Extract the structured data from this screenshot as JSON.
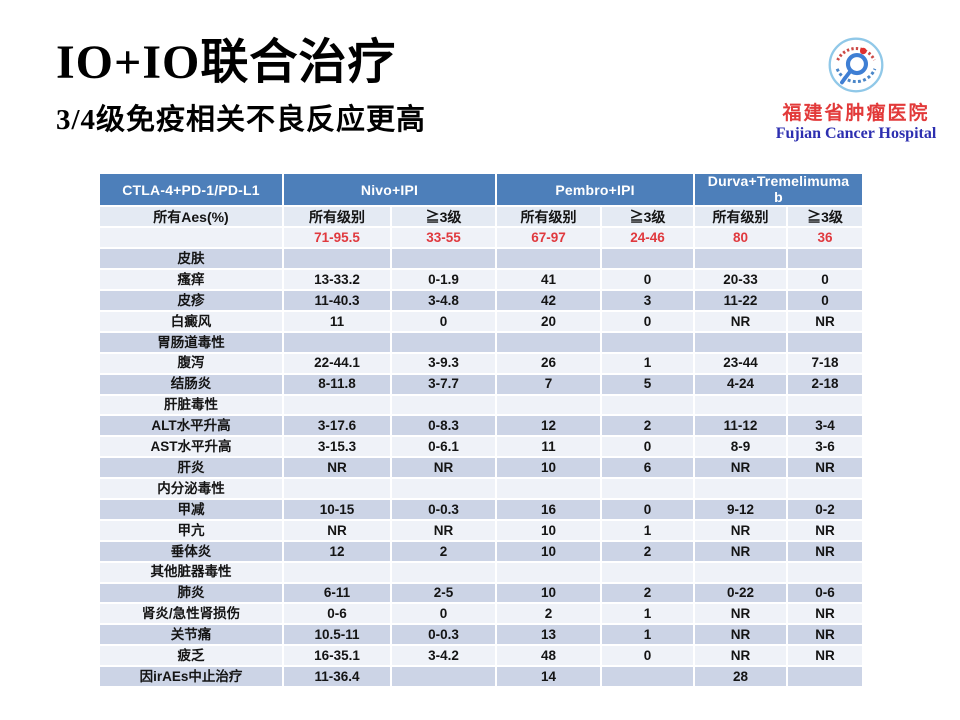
{
  "slide": {
    "title": "IO+IO联合治疗",
    "subtitle": "3/4级免疫相关不良反应更高"
  },
  "logo": {
    "hospital_cn": "福建省肿瘤医院",
    "hospital_en": "Fujian Cancer Hospital"
  },
  "colors": {
    "header_blue": "#4d7fba",
    "band_dark": "#ccd4e6",
    "band_light": "#eff2f8",
    "subheader_bg": "#e4eaf3",
    "red_text": "#e0393e",
    "hospital_cn_color": "#e23a3a",
    "hospital_en_color": "#2d2fb0"
  },
  "table": {
    "header": {
      "col1": "CTLA-4+PD-1/PD-L1",
      "groups": [
        "Nivo+IPI",
        "Pembro+IPI",
        "Durva+Tremelimumab"
      ]
    },
    "subheader": {
      "label": "所有Aes(%)",
      "cols": [
        "所有级别",
        "≧3级",
        "所有级别",
        "≧3级",
        "所有级别",
        "≧3级"
      ]
    },
    "summary": {
      "values": [
        "71-95.5",
        "33-55",
        "67-97",
        "24-46",
        "80",
        "36"
      ]
    },
    "rows": [
      {
        "label": "皮肤",
        "category": true,
        "values": [
          "",
          "",
          "",
          "",
          "",
          ""
        ]
      },
      {
        "label": "瘙痒",
        "category": false,
        "values": [
          "13-33.2",
          "0-1.9",
          "41",
          "0",
          "20-33",
          "0"
        ]
      },
      {
        "label": "皮疹",
        "category": false,
        "values": [
          "11-40.3",
          "3-4.8",
          "42",
          "3",
          "11-22",
          "0"
        ]
      },
      {
        "label": "白癜风",
        "category": false,
        "values": [
          "11",
          "0",
          "20",
          "0",
          "NR",
          "NR"
        ]
      },
      {
        "label": "胃肠道毒性",
        "category": true,
        "values": [
          "",
          "",
          "",
          "",
          "",
          ""
        ]
      },
      {
        "label": "腹泻",
        "category": false,
        "values": [
          "22-44.1",
          "3-9.3",
          "26",
          "1",
          "23-44",
          "7-18"
        ]
      },
      {
        "label": "结肠炎",
        "category": false,
        "values": [
          "8-11.8",
          "3-7.7",
          "7",
          "5",
          "4-24",
          "2-18"
        ]
      },
      {
        "label": "肝脏毒性",
        "category": true,
        "values": [
          "",
          "",
          "",
          "",
          "",
          ""
        ]
      },
      {
        "label": "ALT水平升高",
        "category": false,
        "values": [
          "3-17.6",
          "0-8.3",
          "12",
          "2",
          "11-12",
          "3-4"
        ]
      },
      {
        "label": "AST水平升高",
        "category": false,
        "values": [
          "3-15.3",
          "0-6.1",
          "11",
          "0",
          "8-9",
          "3-6"
        ]
      },
      {
        "label": "肝炎",
        "category": false,
        "values": [
          "NR",
          "NR",
          "10",
          "6",
          "NR",
          "NR"
        ]
      },
      {
        "label": "内分泌毒性",
        "category": true,
        "values": [
          "",
          "",
          "",
          "",
          "",
          ""
        ]
      },
      {
        "label": "甲减",
        "category": false,
        "values": [
          "10-15",
          "0-0.3",
          "16",
          "0",
          "9-12",
          "0-2"
        ]
      },
      {
        "label": "甲亢",
        "category": false,
        "values": [
          "NR",
          "NR",
          "10",
          "1",
          "NR",
          "NR"
        ]
      },
      {
        "label": "垂体炎",
        "category": false,
        "values": [
          "12",
          "2",
          "10",
          "2",
          "NR",
          "NR"
        ]
      },
      {
        "label": "其他脏器毒性",
        "category": true,
        "values": [
          "",
          "",
          "",
          "",
          "",
          ""
        ]
      },
      {
        "label": "肺炎",
        "category": false,
        "values": [
          "6-11",
          "2-5",
          "10",
          "2",
          "0-22",
          "0-6"
        ]
      },
      {
        "label": "肾炎/急性肾损伤",
        "category": false,
        "values": [
          "0-6",
          "0",
          "2",
          "1",
          "NR",
          "NR"
        ]
      },
      {
        "label": "关节痛",
        "category": false,
        "values": [
          "10.5-11",
          "0-0.3",
          "13",
          "1",
          "NR",
          "NR"
        ]
      },
      {
        "label": "疲乏",
        "category": false,
        "values": [
          "16-35.1",
          "3-4.2",
          "48",
          "0",
          "NR",
          "NR"
        ]
      },
      {
        "label": "因irAEs中止治疗",
        "category": false,
        "values": [
          "11-36.4",
          "",
          "14",
          "",
          "28",
          ""
        ]
      }
    ]
  }
}
